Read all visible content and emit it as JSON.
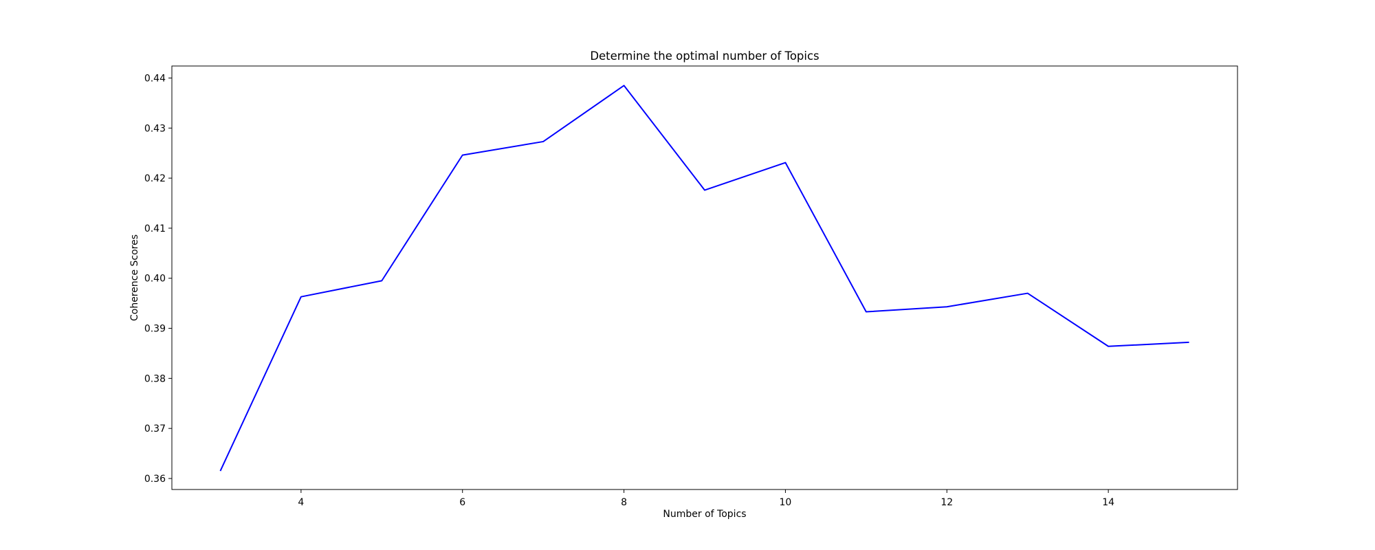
{
  "chart_data": {
    "type": "line",
    "title": "Determine the optimal number of Topics",
    "xlabel": "Number of Topics",
    "ylabel": "Coherence Scores",
    "x": [
      3,
      4,
      5,
      6,
      7,
      8,
      9,
      10,
      11,
      12,
      13,
      14,
      15
    ],
    "series": [
      {
        "values": [
          0.3615,
          0.3963,
          0.3995,
          0.4246,
          0.4273,
          0.4385,
          0.4176,
          0.4231,
          0.3933,
          0.3943,
          0.397,
          0.3864,
          0.3872
        ],
        "color": "#0000ff"
      }
    ],
    "xlim": [
      2.4,
      15.6
    ],
    "ylim": [
      0.3578,
      0.4424
    ],
    "xticks": [
      4,
      6,
      8,
      10,
      12,
      14
    ],
    "yticks": [
      0.36,
      0.37,
      0.38,
      0.39,
      0.4,
      0.41,
      0.42,
      0.43,
      0.44
    ],
    "ytick_labels": [
      "0.36",
      "0.37",
      "0.38",
      "0.39",
      "0.40",
      "0.41",
      "0.42",
      "0.43",
      "0.44"
    ],
    "grid": false,
    "legend": false
  }
}
